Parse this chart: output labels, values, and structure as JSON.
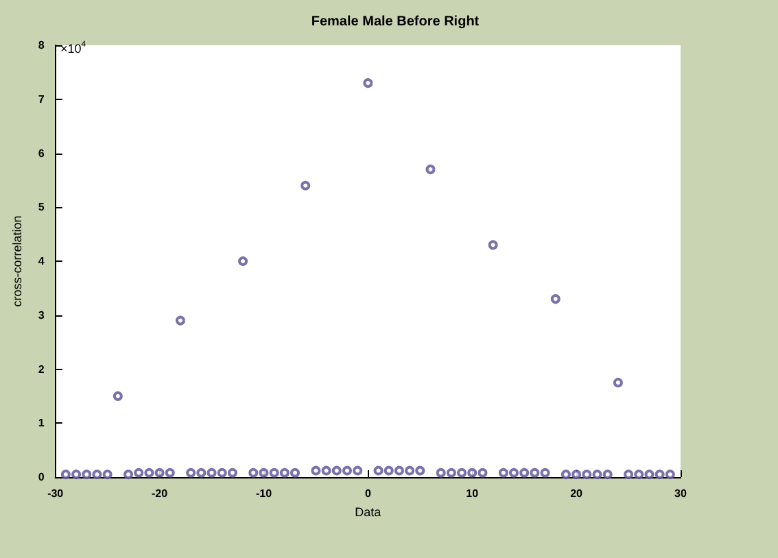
{
  "chart_data": {
    "type": "scatter",
    "title": "Female Male Before Right",
    "xlabel": "Data",
    "ylabel": "cross-correlation",
    "annotations": [
      "×10$^{4}$"
    ],
    "x": [
      -29,
      -28,
      -27,
      -26,
      -25,
      -24,
      -23,
      -22,
      -21,
      -20,
      -19,
      -18,
      -17,
      -16,
      -15,
      -14,
      -13,
      -12,
      -11,
      -10,
      -9,
      -8,
      -7,
      -6,
      -5,
      -4,
      -3,
      -2,
      -1,
      0,
      1,
      2,
      3,
      4,
      5,
      6,
      7,
      8,
      9,
      10,
      11,
      12,
      13,
      14,
      15,
      16,
      17,
      18,
      19,
      20,
      21,
      22,
      23,
      24,
      25,
      26,
      27,
      28,
      29
    ],
    "series": [
      {
        "color": "#5a4f96",
        "values": [
          0.05,
          0.05,
          0.05,
          0.05,
          0.05,
          1.5,
          0.05,
          0.08,
          0.08,
          0.08,
          0.08,
          2.9,
          0.08,
          0.08,
          0.08,
          0.08,
          0.08,
          4.0,
          0.08,
          0.08,
          0.08,
          0.08,
          0.08,
          5.4,
          0.12,
          0.12,
          0.12,
          0.12,
          0.12,
          7.3,
          0.12,
          0.12,
          0.12,
          0.12,
          0.12,
          5.7,
          0.08,
          0.08,
          0.08,
          0.08,
          0.08,
          4.3,
          0.08,
          0.08,
          0.08,
          0.08,
          0.08,
          3.3,
          0.05,
          0.05,
          0.05,
          0.05,
          0.05,
          1.75,
          0.05,
          0.05,
          0.05,
          0.05,
          0.05
        ]
      }
    ],
    "xlim": [
      -30,
      30
    ],
    "xticks": [
      -30,
      -20,
      -10,
      0,
      10,
      20,
      30
    ],
    "ylim": [
      0,
      8
    ],
    "yticks": [
      0,
      1,
      2,
      3,
      4,
      5,
      6,
      7,
      8
    ],
    "marker": "circle",
    "grid": false
  }
}
